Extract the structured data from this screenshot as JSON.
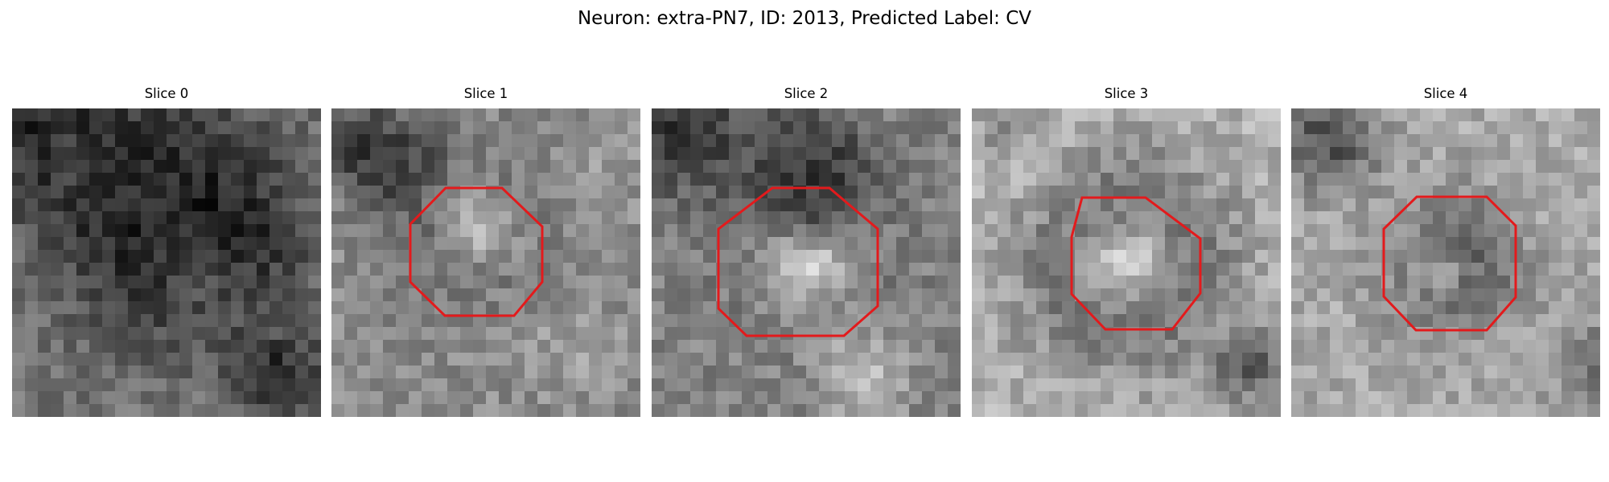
{
  "figure": {
    "title": "Neuron: extra-PN7, ID: 2013, Predicted Label: CV"
  },
  "panels": [
    {
      "title": "Slice 0",
      "roi_outline": false
    },
    {
      "title": "Slice 1",
      "roi_outline": true
    },
    {
      "title": "Slice 2",
      "roi_outline": true
    },
    {
      "title": "Slice 3",
      "roi_outline": true
    },
    {
      "title": "Slice 4",
      "roi_outline": true
    }
  ],
  "colors": {
    "roi_outline": "#e31a1c",
    "background": "#ffffff"
  }
}
